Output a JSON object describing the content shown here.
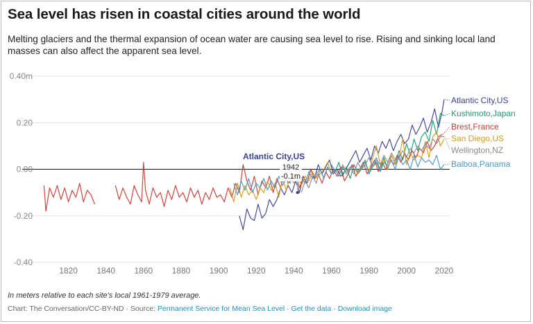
{
  "header": {
    "title": "Sea level has risen in coastal cities around the world",
    "subtitle": "Melting glaciers and the thermal expansion of ocean water are causing sea level to rise. Rising and sinking local land masses can also affect the apparent sea level."
  },
  "footer": {
    "note": "In meters relative to each site's local 1961-1979 average.",
    "chart_credit": "Chart: The Conversation/CC-BY-ND",
    "source_prefix": "Source:",
    "source_link": "Permanent Service for Mean Sea Level",
    "get_data": "Get the data",
    "download_image": "Download image",
    "separator": "·"
  },
  "chart_data": {
    "type": "line",
    "xlabel": "",
    "ylabel": "",
    "xlim": [
      1805,
      2023
    ],
    "ylim": [
      -0.4,
      0.4
    ],
    "x_ticks": [
      1820,
      1840,
      1860,
      1880,
      1900,
      1920,
      1940,
      1960,
      1980,
      2000,
      2020
    ],
    "y_ticks": [
      {
        "value": 0.4,
        "label": "0.40m"
      },
      {
        "value": 0.2,
        "label": "0.20"
      },
      {
        "value": 0.0,
        "label": "0.00"
      },
      {
        "value": -0.2,
        "label": "-0.20"
      },
      {
        "value": -0.4,
        "label": "-0.40"
      }
    ],
    "grid": "horizontal",
    "annotation": {
      "series": "Atlantic City,US",
      "x": 1942,
      "y": -0.1,
      "label_series": "Atlantic City,US",
      "label_year": "1942",
      "label_value": "-0.1m"
    },
    "series": [
      {
        "name": "Atlantic City,US",
        "color": "#3d3f8f",
        "x": [
          1911,
          1913,
          1915,
          1917,
          1919,
          1921,
          1923,
          1925,
          1927,
          1929,
          1931,
          1933,
          1935,
          1937,
          1939,
          1941,
          1943,
          1945,
          1947,
          1949,
          1951,
          1953,
          1955,
          1957,
          1959,
          1961,
          1963,
          1965,
          1967,
          1969,
          1971,
          1973,
          1975,
          1977,
          1979,
          1981,
          1983,
          1985,
          1987,
          1989,
          1991,
          1993,
          1995,
          1997,
          1999,
          2001,
          2003,
          2005,
          2007,
          2009,
          2011,
          2013,
          2015,
          2017,
          2019,
          2020
        ],
        "y": [
          -0.2,
          -0.26,
          -0.17,
          -0.21,
          -0.22,
          -0.15,
          -0.21,
          -0.19,
          -0.13,
          -0.16,
          -0.13,
          -0.08,
          -0.11,
          -0.07,
          -0.1,
          -0.05,
          -0.1,
          -0.03,
          -0.06,
          0.0,
          -0.04,
          0.02,
          -0.02,
          0.01,
          0.04,
          -0.02,
          0.0,
          -0.03,
          -0.01,
          0.02,
          0.05,
          0.08,
          0.03,
          0.06,
          0.09,
          0.04,
          0.1,
          0.07,
          0.12,
          0.09,
          0.13,
          0.08,
          0.12,
          0.15,
          0.11,
          0.13,
          0.19,
          0.15,
          0.18,
          0.22,
          0.16,
          0.2,
          0.26,
          0.18,
          0.25,
          0.3
        ]
      },
      {
        "name": "Kushimoto,Japan",
        "color": "#1a9e6f",
        "x": [
          1960,
          1962,
          1964,
          1966,
          1968,
          1970,
          1972,
          1974,
          1976,
          1978,
          1980,
          1982,
          1984,
          1986,
          1988,
          1990,
          1992,
          1994,
          1996,
          1998,
          2000,
          2002,
          2004,
          2006,
          2008,
          2010,
          2012,
          2014,
          2016,
          2018,
          2020
        ],
        "y": [
          0.02,
          -0.01,
          0.03,
          -0.03,
          0.01,
          -0.04,
          0.02,
          -0.02,
          0.0,
          0.04,
          -0.02,
          0.01,
          0.03,
          -0.01,
          0.05,
          0.0,
          0.06,
          0.02,
          0.08,
          0.04,
          0.11,
          0.06,
          0.13,
          0.08,
          0.14,
          0.16,
          0.12,
          0.21,
          0.15,
          0.24,
          0.23
        ]
      },
      {
        "name": "Brest,France",
        "color": "#c93a32",
        "x": [
          1807,
          1808,
          1810,
          1812,
          1814,
          1816,
          1818,
          1820,
          1822,
          1824,
          1826,
          1828,
          1830,
          1832,
          1834,
          1845,
          1847,
          1849,
          1851,
          1853,
          1855,
          1857,
          1859,
          1860,
          1861,
          1863,
          1865,
          1867,
          1869,
          1871,
          1873,
          1875,
          1877,
          1879,
          1881,
          1883,
          1885,
          1887,
          1889,
          1891,
          1893,
          1895,
          1897,
          1899,
          1901,
          1903,
          1905,
          1907,
          1909,
          1911,
          1913,
          1915,
          1917,
          1919,
          1921,
          1923,
          1925,
          1927,
          1929,
          1931,
          1933,
          1935,
          1937,
          1939,
          1941,
          1943,
          1945,
          1947,
          1949,
          1951,
          1953,
          1955,
          1957,
          1959,
          1961,
          1963,
          1965,
          1967,
          1969,
          1971,
          1973,
          1975,
          1977,
          1979,
          1981,
          1983,
          1985,
          1987,
          1989,
          1991,
          1993,
          1995,
          1997,
          1999,
          2001,
          2003,
          2005,
          2007,
          2009,
          2011,
          2013,
          2015,
          2017,
          2019
        ],
        "y": [
          -0.07,
          -0.18,
          -0.08,
          -0.12,
          -0.07,
          -0.13,
          -0.08,
          -0.14,
          -0.09,
          -0.12,
          -0.06,
          -0.14,
          -0.09,
          -0.11,
          -0.15,
          -0.07,
          -0.13,
          -0.08,
          -0.12,
          -0.15,
          -0.07,
          -0.11,
          -0.14,
          0.03,
          -0.09,
          -0.15,
          -0.08,
          -0.12,
          -0.1,
          -0.16,
          -0.09,
          -0.13,
          -0.07,
          -0.12,
          -0.1,
          -0.14,
          -0.08,
          -0.12,
          -0.09,
          -0.15,
          -0.1,
          -0.13,
          -0.08,
          -0.12,
          -0.11,
          -0.14,
          -0.08,
          -0.12,
          -0.06,
          -0.1,
          0.02,
          -0.05,
          -0.09,
          -0.03,
          -0.11,
          -0.05,
          -0.08,
          -0.03,
          -0.1,
          -0.04,
          -0.08,
          -0.02,
          -0.06,
          -0.04,
          -0.02,
          -0.08,
          -0.03,
          -0.06,
          0.0,
          -0.04,
          -0.02,
          -0.06,
          -0.01,
          -0.04,
          0.0,
          -0.03,
          0.01,
          -0.05,
          -0.02,
          0.02,
          -0.03,
          0.0,
          0.03,
          -0.02,
          0.01,
          0.04,
          -0.01,
          0.03,
          0.0,
          0.05,
          0.02,
          0.06,
          0.03,
          0.07,
          0.04,
          0.08,
          0.05,
          0.09,
          0.07,
          0.12,
          0.08,
          0.1,
          0.14,
          0.15
        ]
      },
      {
        "name": "San Diego,US",
        "color": "#d99a1c",
        "x": [
          1906,
          1908,
          1910,
          1912,
          1914,
          1916,
          1918,
          1920,
          1922,
          1924,
          1926,
          1928,
          1930,
          1932,
          1934,
          1936,
          1938,
          1940,
          1942,
          1944,
          1946,
          1948,
          1950,
          1952,
          1954,
          1956,
          1958,
          1960,
          1962,
          1964,
          1966,
          1968,
          1970,
          1972,
          1974,
          1976,
          1978,
          1980,
          1982,
          1984,
          1986,
          1988,
          1990,
          1992,
          1994,
          1996,
          1998,
          2000,
          2002,
          2004,
          2006,
          2008,
          2010,
          2012,
          2014,
          2016,
          2018,
          2020
        ],
        "y": [
          -0.08,
          -0.14,
          -0.06,
          -0.12,
          -0.07,
          -0.11,
          -0.09,
          -0.13,
          -0.08,
          -0.1,
          -0.05,
          -0.09,
          -0.06,
          -0.12,
          -0.04,
          -0.09,
          -0.03,
          -0.06,
          -0.02,
          -0.07,
          -0.03,
          -0.05,
          -0.01,
          -0.04,
          -0.02,
          0.0,
          0.03,
          -0.02,
          0.0,
          -0.03,
          0.01,
          -0.01,
          0.0,
          0.02,
          -0.02,
          0.01,
          0.03,
          -0.01,
          0.05,
          0.1,
          0.02,
          0.04,
          0.0,
          0.06,
          0.02,
          0.05,
          0.13,
          0.02,
          0.07,
          0.04,
          0.06,
          0.05,
          0.12,
          0.05,
          0.14,
          0.16,
          0.1,
          0.13
        ]
      },
      {
        "name": "Wellington,NZ",
        "color": "#8c8c8c",
        "x": [
          1944,
          1946,
          1948,
          1950,
          1952,
          1954,
          1956,
          1958,
          1960,
          1962,
          1964,
          1966,
          1968,
          1970,
          1972,
          1974,
          1976,
          1978,
          1980,
          1982,
          1984,
          1986,
          1988,
          1990,
          1992,
          1994,
          1996,
          1998,
          2000,
          2002,
          2004,
          2006,
          2008,
          2010,
          2012,
          2014,
          2016,
          2018,
          2020
        ],
        "y": [
          -0.1,
          -0.05,
          -0.08,
          -0.03,
          -0.06,
          0.0,
          -0.04,
          0.01,
          -0.02,
          0.0,
          -0.03,
          0.02,
          -0.01,
          0.01,
          -0.02,
          0.03,
          0.0,
          0.02,
          0.05,
          0.01,
          0.04,
          0.02,
          0.06,
          0.03,
          0.07,
          0.04,
          0.05,
          0.08,
          0.05,
          0.09,
          0.07,
          0.1,
          0.08,
          0.11,
          0.09,
          0.13,
          0.11,
          0.14,
          0.14
        ]
      },
      {
        "name": "Balboa,Panama",
        "color": "#4a98c9",
        "x": [
          1908,
          1910,
          1912,
          1914,
          1916,
          1918,
          1920,
          1922,
          1924,
          1926,
          1928,
          1930,
          1932,
          1934,
          1936,
          1938,
          1940,
          1942,
          1944,
          1946,
          1948,
          1950,
          1952,
          1954,
          1956,
          1958,
          1960,
          1962,
          1964,
          1966,
          1968,
          1970,
          1972,
          1974,
          1976,
          1978,
          1980,
          1982,
          1984,
          1986,
          1988,
          1990,
          1992,
          1994,
          1996,
          1998,
          2000,
          2002,
          2004,
          2006,
          2008,
          2010,
          2012,
          2014,
          2016,
          2018,
          2020
        ],
        "y": [
          -0.06,
          -0.11,
          -0.05,
          -0.09,
          -0.04,
          -0.1,
          -0.06,
          -0.08,
          -0.04,
          -0.09,
          -0.05,
          -0.08,
          -0.03,
          -0.07,
          -0.04,
          -0.06,
          -0.02,
          -0.05,
          -0.03,
          -0.06,
          -0.01,
          -0.04,
          -0.02,
          0.0,
          -0.04,
          0.01,
          -0.02,
          0.0,
          -0.03,
          0.01,
          -0.02,
          0.0,
          0.02,
          -0.01,
          0.01,
          0.03,
          -0.02,
          0.02,
          0.05,
          -0.01,
          0.03,
          0.01,
          0.04,
          0.0,
          0.06,
          0.02,
          0.04,
          0.0,
          0.06,
          0.01,
          0.05,
          0.03,
          0.04,
          0.02,
          0.06,
          0.0,
          0.02
        ]
      }
    ]
  }
}
